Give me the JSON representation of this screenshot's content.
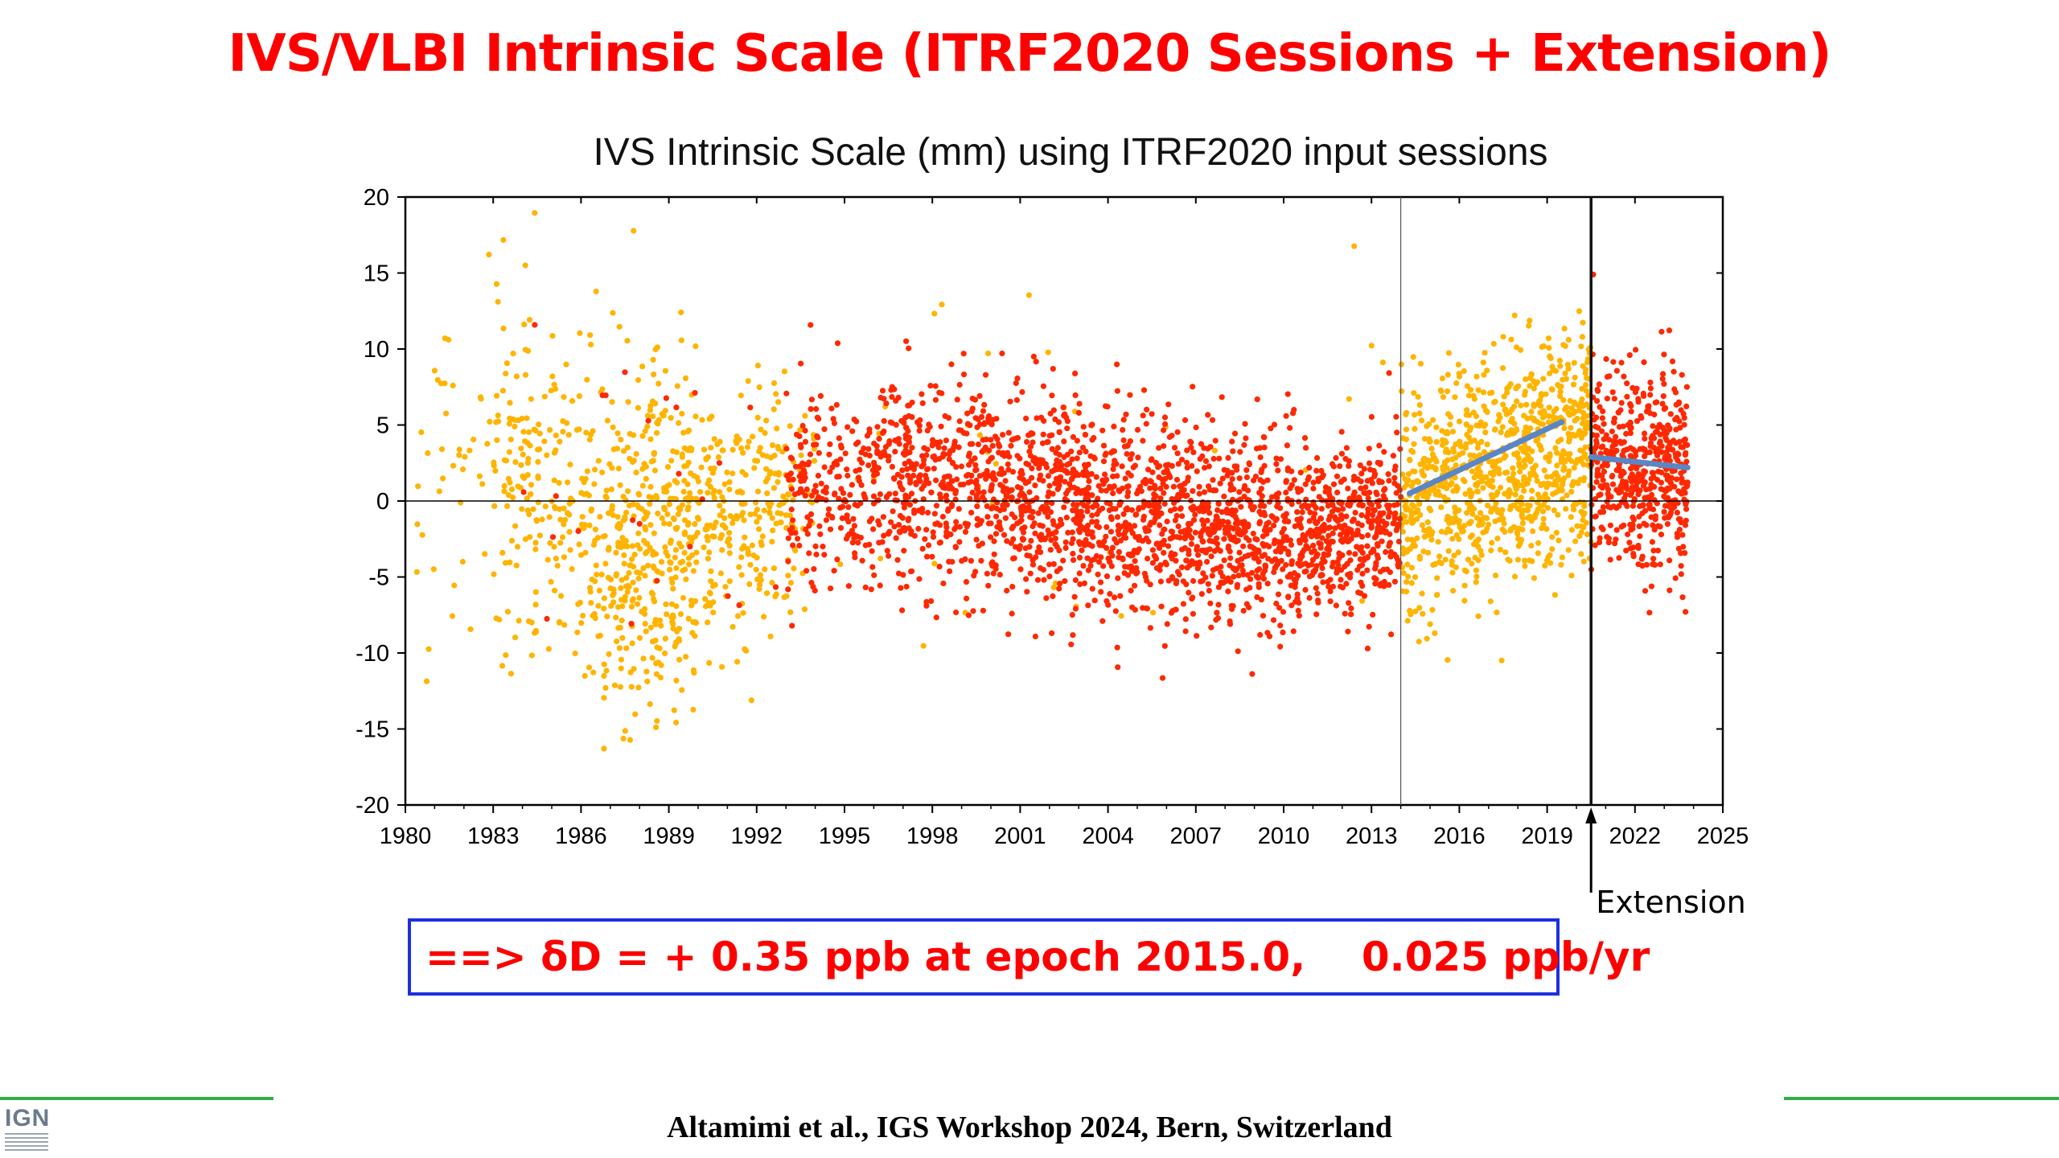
{
  "slide": {
    "title": "IVS/VLBI Intrinsic Scale (ITRF2020 Sessions + Extension)",
    "result_text": "==> δD = + 0.35 ppb at epoch 2015.0,    0.025 ppb/yr",
    "footer_credit": "Altamimi et al., IGS Workshop 2024, Bern, Switzerland",
    "logo_text": "IGN",
    "colors": {
      "title": "#ff0000",
      "box_border": "#1d2fe0",
      "footer_line": "#2fae4a"
    }
  },
  "chart_data": {
    "type": "scatter",
    "title": "IVS Intrinsic Scale (mm) using ITRF2020 input sessions",
    "xlabel": "",
    "ylabel": "",
    "xlim": [
      1980,
      2025
    ],
    "ylim": [
      -20,
      20
    ],
    "xticks": [
      "1980",
      "1983",
      "1986",
      "1989",
      "1992",
      "1995",
      "1998",
      "2001",
      "2004",
      "2007",
      "2010",
      "2013",
      "2016",
      "2019",
      "2022",
      "2025"
    ],
    "yticks": [
      "20",
      "15",
      "10",
      "5",
      "0",
      "-5",
      "-10",
      "-15",
      "-20"
    ],
    "grid": false,
    "zero_line": true,
    "vertical_markers": [
      {
        "x": 2014.0,
        "style": "thin"
      },
      {
        "x": 2020.5,
        "style": "thick"
      }
    ],
    "annotation": {
      "text": "Extension",
      "x": 2020.5
    },
    "series": [
      {
        "color": "#ffb400",
        "density_segments": [
          {
            "x": [
              1980.3,
              1983.0
            ],
            "count": 40,
            "center": [
              [
                1980.3,
                -1
              ],
              [
                1983,
                3
              ]
            ],
            "spread": 9
          },
          {
            "x": [
              1983.0,
              1987.0
            ],
            "count": 260,
            "center": [
              [
                1983,
                3
              ],
              [
                1987,
                -3
              ]
            ],
            "spread": 8.5
          },
          {
            "x": [
              1987.0,
              1990.0
            ],
            "count": 380,
            "center": [
              [
                1987,
                -3
              ],
              [
                1990,
                -2
              ]
            ],
            "spread": 7.5
          },
          {
            "x": [
              1990.0,
              1993.0
            ],
            "count": 220,
            "center": [
              [
                1990,
                -2
              ],
              [
                1993,
                0
              ]
            ],
            "spread": 5.5
          },
          {
            "x": [
              1993.0,
              1994.0
            ],
            "count": 40,
            "center": [
              [
                1993,
                0
              ],
              [
                1994,
                0
              ]
            ],
            "spread": 5
          },
          {
            "x": [
              1994.0,
              2013.8
            ],
            "count": 40,
            "center": [
              [
                1994,
                0
              ],
              [
                2013.8,
                -1
              ]
            ],
            "spread": 9
          },
          {
            "x": [
              2014.0,
              2020.5
            ],
            "count": 950,
            "center": [
              [
                2014,
                -0.5
              ],
              [
                2020.5,
                4.5
              ]
            ],
            "spread": 5
          }
        ]
      },
      {
        "color": "#ff2800",
        "density_segments": [
          {
            "x": [
              1984.0,
              1993.0
            ],
            "count": 25,
            "center": [
              [
                1984,
                3
              ],
              [
                1993,
                1
              ]
            ],
            "spread": 7
          },
          {
            "x": [
              1993.0,
              1996.0
            ],
            "count": 200,
            "center": [
              [
                1993,
                0.5
              ],
              [
                1996,
                1
              ]
            ],
            "spread": 5
          },
          {
            "x": [
              1996.0,
              2001.0
            ],
            "count": 520,
            "center": [
              [
                1996,
                1.5
              ],
              [
                2001,
                1
              ]
            ],
            "spread": 4.6
          },
          {
            "x": [
              2001.0,
              2006.0
            ],
            "count": 620,
            "center": [
              [
                2001,
                0
              ],
              [
                2006,
                -1.5
              ]
            ],
            "spread": 4.6
          },
          {
            "x": [
              2006.0,
              2010.5
            ],
            "count": 560,
            "center": [
              [
                2006,
                -1
              ],
              [
                2010.5,
                -2.5
              ]
            ],
            "spread": 4.4
          },
          {
            "x": [
              2010.5,
              2014.0
            ],
            "count": 440,
            "center": [
              [
                2010.5,
                -2
              ],
              [
                2014,
                -1
              ]
            ],
            "spread": 3.6
          },
          {
            "x": [
              2020.5,
              2023.8
            ],
            "count": 520,
            "center": [
              [
                2020.5,
                2.5
              ],
              [
                2023.8,
                1.5
              ]
            ],
            "spread": 4.5
          }
        ]
      }
    ],
    "trend_lines": [
      {
        "color": "#5b86c5",
        "x": [
          2014.3,
          2019.5
        ],
        "y": [
          0.5,
          5.2
        ]
      },
      {
        "color": "#5b86c5",
        "x": [
          2020.5,
          2023.8
        ],
        "y": [
          2.9,
          2.2
        ]
      }
    ]
  }
}
